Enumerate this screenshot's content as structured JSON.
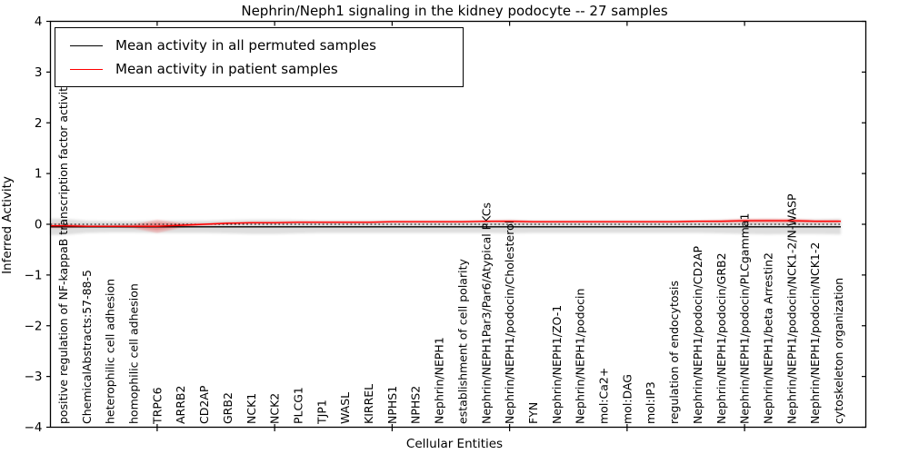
{
  "title": "Nephrin/Neph1 signaling in the kidney podocyte -- 27 samples",
  "legend": {
    "entries": [
      {
        "label": "Mean activity in all permuted samples",
        "color": "#000000"
      },
      {
        "label": "Mean activity in patient samples",
        "color": "#ff0000"
      }
    ]
  },
  "chart_data": {
    "type": "line",
    "title": "Nephrin/Neph1 signaling in the kidney podocyte -- 27 samples",
    "xlabel": "Cellular Entities",
    "ylabel": "Inferred Activity",
    "ylim": [
      -4,
      4
    ],
    "yticks": [
      4,
      3,
      2,
      1,
      0,
      -1,
      -2,
      -3,
      -4
    ],
    "xtick_indices": [
      4,
      9,
      14,
      19,
      24,
      29
    ],
    "grid": false,
    "legend_position": "upper left",
    "categories": [
      "positive regulation of NF-kappaB transcription factor activity",
      "ChemicalAbstracts:57-88-5",
      "heterophilic cell adhesion",
      "homophilic cell adhesion",
      "TRPC6",
      "ARRB2",
      "CD2AP",
      "GRB2",
      "NCK1",
      "NCK2",
      "PLCG1",
      "TJP1",
      "WASL",
      "KIRREL",
      "NPHS1",
      "NPHS2",
      "Nephrin/NEPH1",
      "establishment of cell polarity",
      "Nephrin/NEPH1Par3/Par6/Atypical PKCs",
      "Nephrin/NEPH1/podocin/Cholesterol",
      "FYN",
      "Nephrin/NEPH1/ZO-1",
      "Nephrin/NEPH1/podocin",
      "mol:Ca2+",
      "mol:DAG",
      "mol:IP3",
      "regulation of endocytosis",
      "Nephrin/NEPH1/podocin/CD2AP",
      "Nephrin/NEPH1/podocin/GRB2",
      "Nephrin/NEPH1/podocin/PLCgamma1",
      "Nephrin/NEPH1/beta Arrestin2",
      "Nephrin/NEPH1/podocin/NCK1-2/N-WASP",
      "Nephrin/NEPH1/podocin/NCK1-2",
      "cytoskeleton organization"
    ],
    "series": [
      {
        "name": "Mean activity in all permuted samples",
        "color": "#000000",
        "style": "solid",
        "values": [
          -0.05,
          -0.05,
          -0.05,
          -0.05,
          -0.05,
          -0.05,
          -0.05,
          -0.05,
          -0.05,
          -0.05,
          -0.05,
          -0.05,
          -0.05,
          -0.05,
          -0.05,
          -0.05,
          -0.05,
          -0.05,
          -0.05,
          -0.05,
          -0.05,
          -0.05,
          -0.05,
          -0.05,
          -0.05,
          -0.05,
          -0.05,
          -0.05,
          -0.05,
          -0.05,
          -0.05,
          -0.05,
          -0.05,
          -0.05
        ]
      },
      {
        "name": "Mean activity in patient samples",
        "color": "#ff0000",
        "style": "solid",
        "values": [
          -0.03,
          -0.04,
          -0.04,
          -0.04,
          -0.04,
          -0.02,
          0.0,
          0.02,
          0.03,
          0.03,
          0.04,
          0.04,
          0.04,
          0.04,
          0.05,
          0.05,
          0.05,
          0.05,
          0.06,
          0.06,
          0.05,
          0.05,
          0.05,
          0.05,
          0.05,
          0.05,
          0.05,
          0.06,
          0.06,
          0.07,
          0.07,
          0.07,
          0.06,
          0.06
        ]
      }
    ],
    "bands": [
      {
        "name": "permuted-activity-spread",
        "color": "#000000",
        "opacity": 0.13,
        "center_series": 0,
        "half_widths": [
          0.16,
          0.12,
          0.11,
          0.11,
          0.12,
          0.12,
          0.12,
          0.13,
          0.14,
          0.14,
          0.13,
          0.12,
          0.12,
          0.12,
          0.12,
          0.12,
          0.12,
          0.12,
          0.12,
          0.13,
          0.12,
          0.12,
          0.12,
          0.12,
          0.12,
          0.12,
          0.12,
          0.12,
          0.13,
          0.14,
          0.15,
          0.14,
          0.14,
          0.15
        ]
      },
      {
        "name": "patient-activity-spread",
        "color": "#ff0000",
        "opacity": 0.18,
        "center_series": 1,
        "half_widths": [
          0.05,
          0.02,
          0.02,
          0.04,
          0.13,
          0.05,
          0.02,
          0.02,
          0.02,
          0.02,
          0.02,
          0.02,
          0.02,
          0.02,
          0.02,
          0.02,
          0.02,
          0.02,
          0.02,
          0.03,
          0.02,
          0.02,
          0.02,
          0.02,
          0.02,
          0.02,
          0.02,
          0.02,
          0.03,
          0.04,
          0.04,
          0.04,
          0.03,
          0.03
        ]
      }
    ],
    "zero_line": {
      "value": 0,
      "style": "dotted",
      "color": "#000000"
    }
  }
}
